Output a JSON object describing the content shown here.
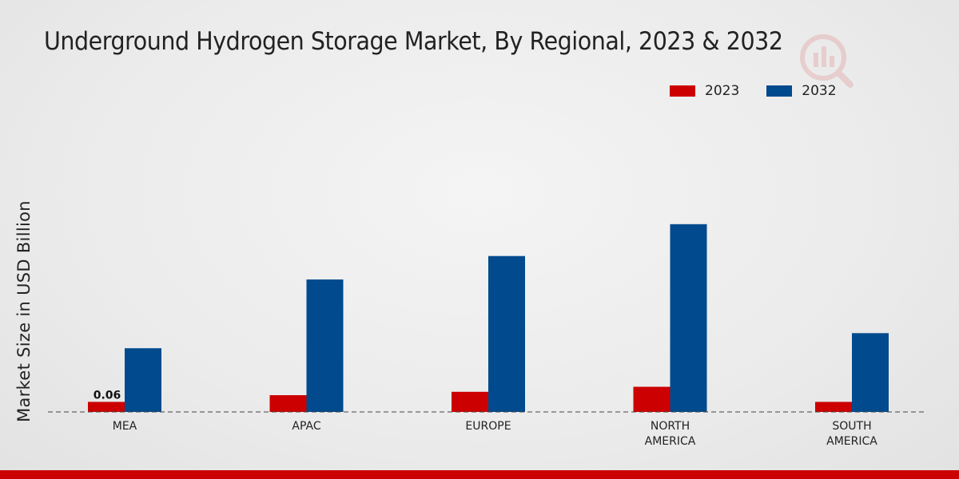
{
  "chart_data": {
    "type": "bar",
    "title": "Underground Hydrogen Storage Market, By Regional, 2023 & 2032",
    "xlabel": "",
    "ylabel": "Market Size in USD Billion",
    "categories": [
      "MEA",
      "APAC",
      "EUROPE",
      "NORTH AMERICA",
      "SOUTH AMERICA"
    ],
    "category_lines": [
      [
        "MEA"
      ],
      [
        "APAC"
      ],
      [
        "EUROPE"
      ],
      [
        "NORTH",
        "AMERICA"
      ],
      [
        "SOUTH",
        "AMERICA"
      ]
    ],
    "series": [
      {
        "name": "2023",
        "color": "#cc0000",
        "values": [
          0.06,
          0.1,
          0.12,
          0.15,
          0.06
        ]
      },
      {
        "name": "2032",
        "color": "#004a8d",
        "values": [
          0.38,
          0.79,
          0.93,
          1.12,
          0.47
        ]
      }
    ],
    "data_labels": [
      {
        "series": "2023",
        "category": "MEA",
        "text": "0.06"
      }
    ],
    "ylim": [
      0,
      1.6
    ],
    "legend": "top-right",
    "grid": false
  }
}
